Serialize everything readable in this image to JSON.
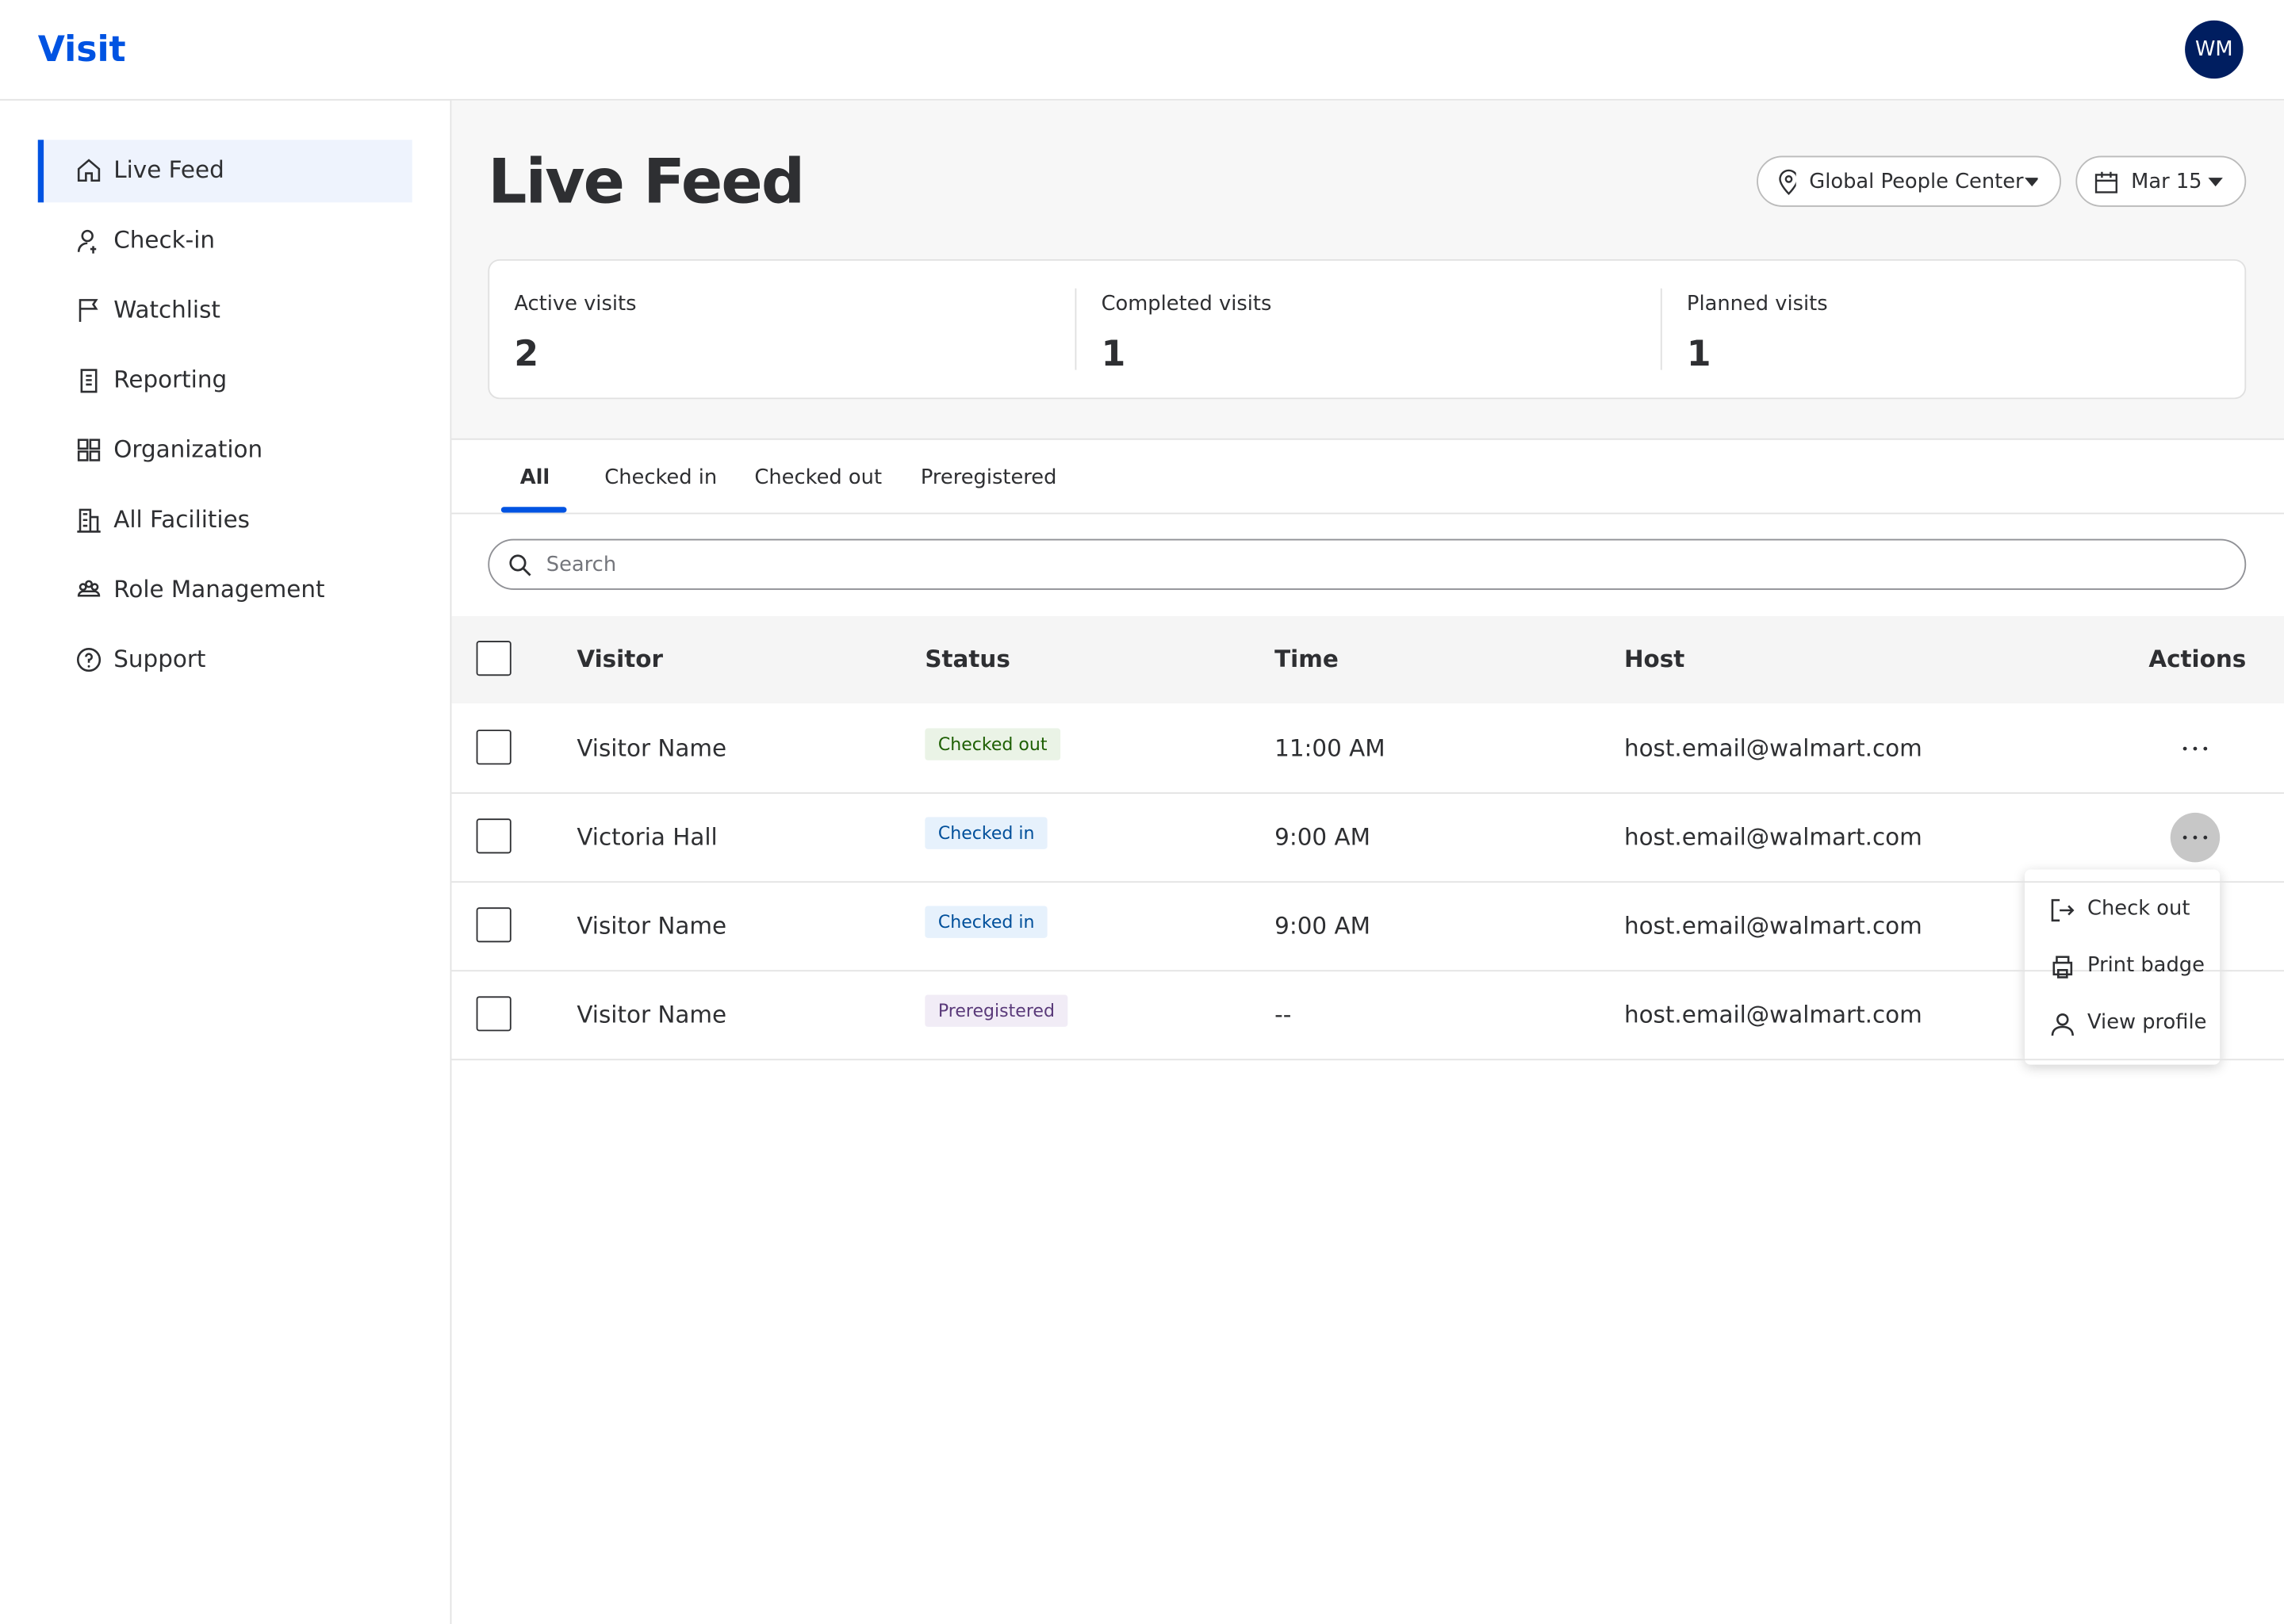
{
  "header": {
    "logo": "Visit",
    "avatar": "WM"
  },
  "nav": {
    "items": [
      "Live Feed",
      "Check-in",
      "Watchlist",
      "Reporting",
      "Organization",
      "All Facilities",
      "Role Management",
      "Support"
    ]
  },
  "page": {
    "title": "Live Feed",
    "filters": [
      "Global People Center",
      "Mar 15"
    ]
  },
  "stats": [
    {
      "label": "Active visits",
      "value": "2"
    },
    {
      "label": "Completed visits",
      "value": "1"
    },
    {
      "label": "Planned visits",
      "value": "1"
    }
  ],
  "tabs": [
    "All",
    "Checked in",
    "Checked out",
    "Preregistered"
  ],
  "search": {
    "placeholder": "Search"
  },
  "table": {
    "headers": [
      "Visitor",
      "Status",
      "Time",
      "Host",
      "Actions"
    ],
    "rows": [
      [
        "Visitor Name",
        "Checked out",
        "11:00 AM",
        "host.email@walmart.com"
      ],
      [
        "Victoria Hall",
        "Checked in",
        "9:00 AM",
        "host.email@walmart.com"
      ],
      [
        "Visitor Name",
        "Checked in",
        "9:00 AM",
        "host.email@walmart.com"
      ],
      [
        "Visitor Name",
        "Preregistered",
        "--",
        "host.email@walmart.com"
      ]
    ]
  },
  "menu": {
    "items": [
      "Check out",
      "Print badge",
      "View profile"
    ]
  }
}
